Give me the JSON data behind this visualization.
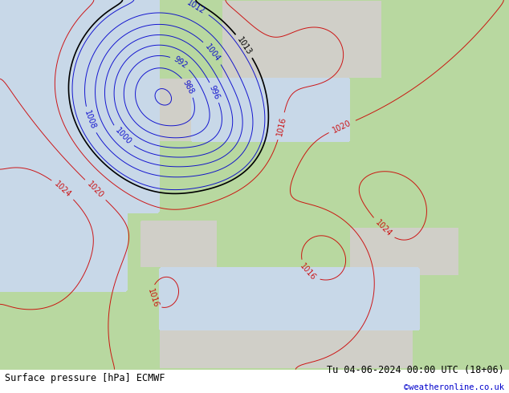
{
  "title_left": "Surface pressure [hPa] ECMWF",
  "title_right": "Tu 04-06-2024 00:00 UTC (18+06)",
  "credit": "©weatheronline.co.uk",
  "fig_width": 6.34,
  "fig_height": 4.9,
  "bg_color_ocean": "#c8d8e8",
  "bg_color_land_green": "#b8d8a0",
  "bg_color_land_gray": "#d0cfc8",
  "contour_color_blue": "#0000cc",
  "contour_color_red": "#cc0000",
  "contour_color_black": "#000000",
  "label_fontsize": 7,
  "footer_fontsize": 8.5,
  "credit_color": "#0000cc"
}
